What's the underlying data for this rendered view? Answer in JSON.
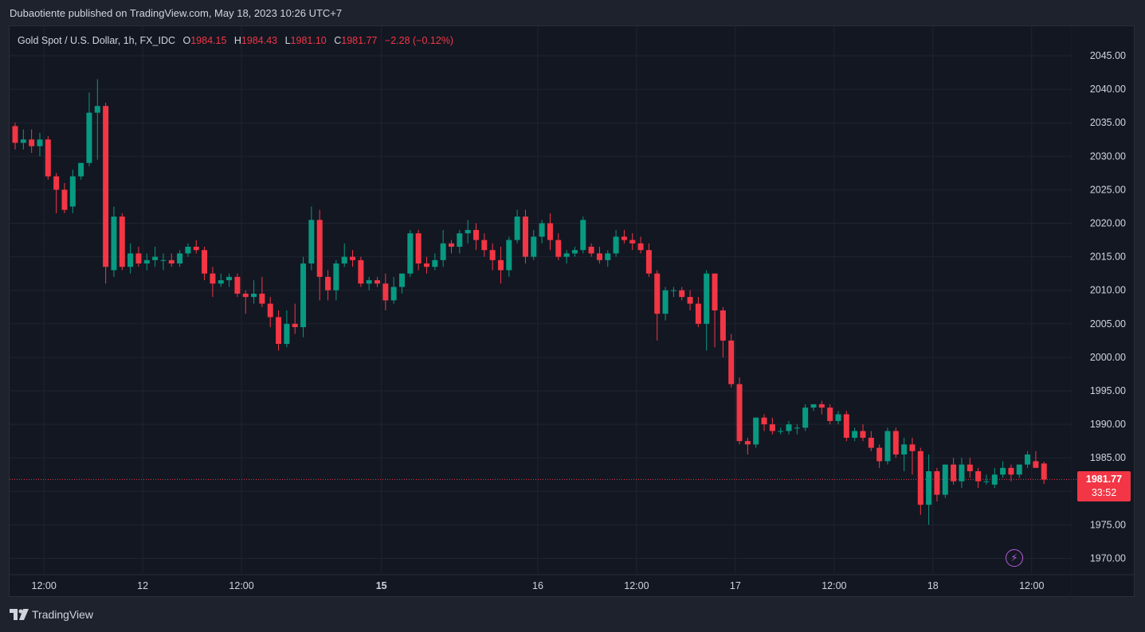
{
  "header": {
    "published": "Dubaotiente published on TradingView.com, May 18, 2023 10:26 UTC+7"
  },
  "legend": {
    "symbol": "Gold Spot / U.S. Dollar, 1h, FX_IDC",
    "open_label": "O",
    "open": "1984.15",
    "high_label": "H",
    "high": "1984.43",
    "low_label": "L",
    "low": "1981.10",
    "close_label": "C",
    "close": "1981.77",
    "change": "−2.28 (−0.12%)"
  },
  "price_tag": {
    "price": "1981.77",
    "countdown": "33:52"
  },
  "footer": {
    "brand": "TradingView"
  },
  "colors": {
    "up": "#089981",
    "down": "#f23645",
    "grid": "#1f2430",
    "bg": "#131722",
    "axis_text": "#d1d4dc"
  },
  "chart_data": {
    "type": "candlestick",
    "title": "",
    "xlabel": "",
    "ylabel": "",
    "ylim": [
      1967.5,
      2048.5
    ],
    "y_ticks": [
      "2045.00",
      "2040.00",
      "2035.00",
      "2030.00",
      "2025.00",
      "2020.00",
      "2015.00",
      "2010.00",
      "2005.00",
      "2000.00",
      "1995.00",
      "1990.00",
      "1985.00",
      "1980.00",
      "1975.00",
      "1970.00"
    ],
    "x_ticks": [
      {
        "label": "12:00",
        "bar": 3.5,
        "bold": false
      },
      {
        "label": "12",
        "bar": 15.5,
        "bold": false
      },
      {
        "label": "12:00",
        "bar": 27.5,
        "bold": false
      },
      {
        "label": "15",
        "bar": 44.5,
        "bold": true
      },
      {
        "label": "16",
        "bar": 63.5,
        "bold": false
      },
      {
        "label": "12:00",
        "bar": 75.5,
        "bold": false
      },
      {
        "label": "17",
        "bar": 87.5,
        "bold": false
      },
      {
        "label": "12:00",
        "bar": 99.5,
        "bold": false
      },
      {
        "label": "18",
        "bar": 111.5,
        "bold": false
      },
      {
        "label": "12:00",
        "bar": 123.5,
        "bold": false
      }
    ],
    "last_price": 1981.77,
    "grid": true,
    "candles": [
      [
        2034.5,
        2035.0,
        2031.0,
        2032.0
      ],
      [
        2032.0,
        2034.0,
        2031.0,
        2032.5
      ],
      [
        2032.5,
        2034.0,
        2030.5,
        2031.5
      ],
      [
        2031.5,
        2033.5,
        2030.0,
        2032.5
      ],
      [
        2032.5,
        2033.0,
        2026.5,
        2027.0
      ],
      [
        2027.0,
        2027.5,
        2021.5,
        2025.0
      ],
      [
        2025.0,
        2026.0,
        2021.5,
        2022.0
      ],
      [
        2022.5,
        2028.0,
        2021.5,
        2027.0
      ],
      [
        2027.0,
        2029.0,
        2026.5,
        2029.0
      ],
      [
        2029.0,
        2039.5,
        2028.5,
        2036.5
      ],
      [
        2036.5,
        2041.5,
        2029.5,
        2037.5
      ],
      [
        2037.5,
        2038.0,
        2011.0,
        2013.5
      ],
      [
        2013.0,
        2022.5,
        2012.0,
        2021.0
      ],
      [
        2021.0,
        2021.5,
        2013.0,
        2013.5
      ],
      [
        2013.5,
        2017.0,
        2012.5,
        2015.5
      ],
      [
        2015.5,
        2016.5,
        2013.5,
        2014.0
      ],
      [
        2014.0,
        2015.5,
        2013.0,
        2014.5
      ],
      [
        2014.5,
        2016.5,
        2013.5,
        2015.0
      ],
      [
        2014.5,
        2015.5,
        2013.0,
        2014.5
      ],
      [
        2014.5,
        2015.5,
        2013.5,
        2014.0
      ],
      [
        2014.0,
        2016.0,
        2013.5,
        2015.5
      ],
      [
        2015.5,
        2017.0,
        2015.0,
        2016.5
      ],
      [
        2016.5,
        2017.5,
        2015.5,
        2016.0
      ],
      [
        2016.0,
        2016.5,
        2011.5,
        2012.5
      ],
      [
        2012.5,
        2013.5,
        2009.0,
        2011.0
      ],
      [
        2011.0,
        2012.5,
        2010.5,
        2011.5
      ],
      [
        2011.5,
        2012.5,
        2010.5,
        2012.0
      ],
      [
        2012.0,
        2012.5,
        2009.0,
        2009.5
      ],
      [
        2009.5,
        2010.0,
        2006.5,
        2009.0
      ],
      [
        2009.0,
        2011.5,
        2008.0,
        2009.5
      ],
      [
        2009.5,
        2012.0,
        2007.5,
        2008.0
      ],
      [
        2008.0,
        2009.0,
        2004.5,
        2006.0
      ],
      [
        2006.0,
        2007.0,
        2001.0,
        2002.0
      ],
      [
        2002.0,
        2007.0,
        2001.5,
        2005.0
      ],
      [
        2005.0,
        2008.0,
        2003.5,
        2004.5
      ],
      [
        2004.5,
        2015.0,
        2003.0,
        2014.0
      ],
      [
        2014.0,
        2022.5,
        2013.0,
        2020.5
      ],
      [
        2020.5,
        2022.0,
        2008.5,
        2012.0
      ],
      [
        2012.0,
        2013.0,
        2008.5,
        2010.0
      ],
      [
        2010.0,
        2014.5,
        2008.5,
        2014.0
      ],
      [
        2014.0,
        2017.0,
        2013.5,
        2015.0
      ],
      [
        2015.0,
        2016.0,
        2013.5,
        2014.5
      ],
      [
        2014.5,
        2015.0,
        2010.5,
        2011.0
      ],
      [
        2011.0,
        2012.0,
        2010.0,
        2011.5
      ],
      [
        2011.5,
        2012.0,
        2010.5,
        2011.0
      ],
      [
        2011.0,
        2012.5,
        2007.0,
        2008.5
      ],
      [
        2008.5,
        2012.0,
        2008.0,
        2010.5
      ],
      [
        2010.5,
        2012.0,
        2009.5,
        2012.5
      ],
      [
        2012.5,
        2019.0,
        2012.0,
        2018.5
      ],
      [
        2018.5,
        2019.0,
        2013.0,
        2014.0
      ],
      [
        2014.0,
        2015.0,
        2012.5,
        2013.5
      ],
      [
        2013.5,
        2015.5,
        2013.0,
        2014.5
      ],
      [
        2014.5,
        2019.0,
        2013.5,
        2017.0
      ],
      [
        2017.0,
        2017.5,
        2015.5,
        2016.5
      ],
      [
        2016.5,
        2019.0,
        2015.5,
        2018.5
      ],
      [
        2018.5,
        2020.5,
        2017.0,
        2019.0
      ],
      [
        2019.0,
        2020.0,
        2016.0,
        2017.5
      ],
      [
        2017.5,
        2018.5,
        2015.0,
        2016.0
      ],
      [
        2016.0,
        2017.0,
        2013.0,
        2014.5
      ],
      [
        2014.5,
        2016.5,
        2011.0,
        2013.0
      ],
      [
        2013.0,
        2018.0,
        2012.0,
        2017.5
      ],
      [
        2017.5,
        2022.0,
        2017.0,
        2021.0
      ],
      [
        2021.0,
        2022.0,
        2014.0,
        2015.0
      ],
      [
        2015.0,
        2019.0,
        2014.5,
        2018.0
      ],
      [
        2018.0,
        2020.5,
        2017.0,
        2020.0
      ],
      [
        2020.0,
        2021.5,
        2016.0,
        2017.5
      ],
      [
        2017.5,
        2018.5,
        2014.5,
        2015.0
      ],
      [
        2015.0,
        2016.0,
        2014.0,
        2015.5
      ],
      [
        2015.5,
        2016.5,
        2015.0,
        2016.0
      ],
      [
        2016.0,
        2021.0,
        2015.5,
        2020.5
      ],
      [
        2016.5,
        2017.0,
        2015.0,
        2015.5
      ],
      [
        2015.5,
        2016.5,
        2014.0,
        2014.5
      ],
      [
        2014.5,
        2016.0,
        2013.5,
        2015.5
      ],
      [
        2015.5,
        2019.0,
        2015.0,
        2018.0
      ],
      [
        2018.0,
        2019.0,
        2017.0,
        2017.5
      ],
      [
        2017.5,
        2018.5,
        2016.0,
        2017.0
      ],
      [
        2017.0,
        2018.0,
        2015.5,
        2016.0
      ],
      [
        2016.0,
        2017.0,
        2012.0,
        2012.5
      ],
      [
        2012.5,
        2013.0,
        2002.5,
        2006.5
      ],
      [
        2006.5,
        2010.5,
        2005.5,
        2010.0
      ],
      [
        2010.0,
        2010.5,
        2009.0,
        2010.0
      ],
      [
        2010.0,
        2010.5,
        2008.5,
        2009.0
      ],
      [
        2009.0,
        2010.0,
        2007.0,
        2008.0
      ],
      [
        2008.0,
        2009.0,
        2004.5,
        2005.0
      ],
      [
        2005.0,
        2013.0,
        2001.0,
        2012.5
      ],
      [
        2012.5,
        2012.5,
        2001.5,
        2007.0
      ],
      [
        2007.0,
        2007.5,
        2000.0,
        2002.5
      ],
      [
        2002.5,
        2003.5,
        1995.5,
        1996.0
      ],
      [
        1996.0,
        1997.0,
        1987.0,
        1987.5
      ],
      [
        1987.5,
        1988.0,
        1985.5,
        1987.0
      ],
      [
        1987.0,
        1991.0,
        1986.5,
        1991.0
      ],
      [
        1991.0,
        1991.5,
        1989.0,
        1990.0
      ],
      [
        1990.0,
        1991.0,
        1988.5,
        1989.0
      ],
      [
        1989.0,
        1989.5,
        1988.5,
        1989.0
      ],
      [
        1989.0,
        1990.5,
        1988.5,
        1990.0
      ],
      [
        1989.5,
        1990.0,
        1988.5,
        1989.5
      ],
      [
        1989.5,
        1993.0,
        1989.0,
        1992.5
      ],
      [
        1992.5,
        1993.0,
        1992.0,
        1993.0
      ],
      [
        1993.0,
        1993.5,
        1991.5,
        1992.5
      ],
      [
        1992.5,
        1993.0,
        1990.0,
        1990.5
      ],
      [
        1990.5,
        1992.0,
        1990.0,
        1991.5
      ],
      [
        1991.5,
        1992.0,
        1987.5,
        1988.0
      ],
      [
        1988.0,
        1989.5,
        1987.5,
        1989.0
      ],
      [
        1989.0,
        1990.0,
        1987.5,
        1988.0
      ],
      [
        1988.0,
        1989.0,
        1986.0,
        1986.5
      ],
      [
        1986.5,
        1987.0,
        1983.5,
        1984.5
      ],
      [
        1984.5,
        1989.5,
        1984.0,
        1989.0
      ],
      [
        1989.0,
        1989.5,
        1985.0,
        1985.5
      ],
      [
        1985.5,
        1988.0,
        1983.0,
        1987.0
      ],
      [
        1987.0,
        1988.0,
        1982.5,
        1986.0
      ],
      [
        1986.0,
        1986.5,
        1976.5,
        1978.0
      ],
      [
        1978.0,
        1985.5,
        1975.0,
        1983.0
      ],
      [
        1983.0,
        1983.5,
        1978.5,
        1979.5
      ],
      [
        1979.5,
        1984.0,
        1979.0,
        1984.0
      ],
      [
        1984.0,
        1985.0,
        1981.0,
        1981.5
      ],
      [
        1981.5,
        1985.0,
        1980.5,
        1984.0
      ],
      [
        1984.0,
        1985.0,
        1982.0,
        1983.0
      ],
      [
        1983.0,
        1983.5,
        1980.5,
        1981.5
      ],
      [
        1981.5,
        1982.5,
        1981.0,
        1981.5
      ],
      [
        1981.0,
        1983.5,
        1980.5,
        1982.5
      ],
      [
        1982.5,
        1984.5,
        1982.0,
        1983.5
      ],
      [
        1983.5,
        1984.0,
        1981.5,
        1982.5
      ],
      [
        1982.5,
        1984.0,
        1982.0,
        1984.0
      ],
      [
        1984.0,
        1986.0,
        1983.5,
        1985.5
      ],
      [
        1984.5,
        1986.0,
        1984.0,
        1983.5
      ],
      [
        1984.15,
        1984.43,
        1981.1,
        1981.77
      ]
    ]
  }
}
